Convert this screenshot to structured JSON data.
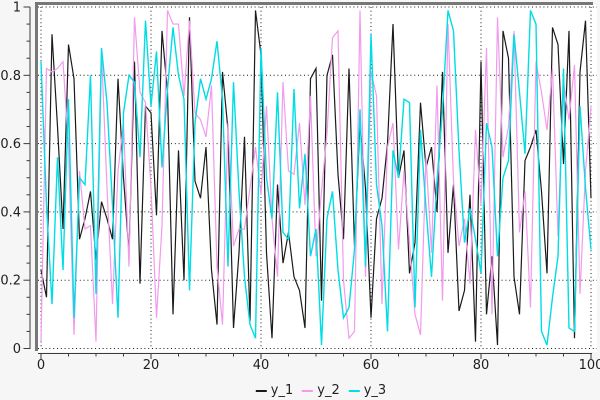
{
  "colors": {
    "background": "#f6f6f6",
    "plot_bg": "#ffffff",
    "grid": "#1b1b1b",
    "frame": "#777777",
    "axis": "#3c3c3c",
    "text": "#1f1f1f",
    "series_y1": "#1a1a1a",
    "series_y2": "#f29aed",
    "series_y3": "#00dde4"
  },
  "chart_data": {
    "type": "line",
    "title": "",
    "xlabel": "",
    "ylabel": "",
    "xlim": [
      0,
      100
    ],
    "ylim": [
      0,
      1
    ],
    "x_major_ticks": [
      0,
      20,
      40,
      60,
      80,
      100
    ],
    "x_tick_labels": [
      "0",
      "20",
      "40",
      "60",
      "80",
      "100"
    ],
    "x_minor_step": 5,
    "y_major_ticks": [
      0,
      0.2,
      0.4,
      0.6,
      0.8,
      1
    ],
    "y_tick_labels": [
      "0",
      "0.2",
      "0.4",
      "0.6",
      "0.8",
      "1"
    ],
    "y_minor_step": 0.05,
    "grid": "dotted lines at every major tick, both axes",
    "legend_position": "bottom-center",
    "x_step": 1,
    "series": [
      {
        "name": "y_1",
        "color": "#1a1a1a",
        "stroke_width": 1.2,
        "values": [
          0.23,
          0.15,
          0.92,
          0.65,
          0.35,
          0.89,
          0.79,
          0.32,
          0.38,
          0.46,
          0.26,
          0.43,
          0.38,
          0.32,
          0.79,
          0.5,
          0.28,
          0.84,
          0.19,
          0.71,
          0.69,
          0.39,
          0.93,
          0.75,
          0.1,
          0.58,
          0.2,
          0.97,
          0.49,
          0.44,
          0.59,
          0.23,
          0.07,
          0.81,
          0.64,
          0.06,
          0.28,
          0.62,
          0.08,
          0.99,
          0.86,
          0.28,
          0.03,
          0.48,
          0.25,
          0.34,
          0.21,
          0.17,
          0.06,
          0.79,
          0.82,
          0.14,
          0.8,
          0.86,
          0.51,
          0.32,
          0.82,
          0.3,
          0.66,
          0.47,
          0.09,
          0.38,
          0.44,
          0.6,
          0.95,
          0.5,
          0.58,
          0.22,
          0.31,
          0.72,
          0.53,
          0.59,
          0.4,
          0.81,
          0.28,
          0.48,
          0.11,
          0.17,
          0.45,
          0.02,
          0.84,
          0.1,
          0.27,
          0.01,
          0.93,
          0.85,
          0.21,
          0.1,
          0.55,
          0.59,
          0.64,
          0.46,
          0.22,
          0.94,
          0.89,
          0.54,
          0.93,
          0.03,
          0.81,
          0.96,
          0.44
        ]
      },
      {
        "name": "y_2",
        "color": "#f29aed",
        "stroke_width": 1.2,
        "values": [
          0.02,
          0.82,
          0.81,
          0.82,
          0.84,
          0.59,
          0.04,
          0.52,
          0.35,
          0.36,
          0.02,
          0.87,
          0.47,
          0.13,
          0.52,
          0.66,
          0.24,
          0.97,
          0.75,
          0.72,
          0.47,
          0.09,
          0.36,
          0.99,
          0.95,
          0.95,
          0.74,
          0.96,
          0.69,
          0.67,
          0.62,
          0.77,
          0.24,
          0.07,
          0.66,
          0.3,
          0.35,
          0.35,
          0.47,
          0.59,
          0.45,
          0.71,
          0.38,
          0.21,
          0.78,
          0.52,
          0.51,
          0.66,
          0.42,
          0.74,
          0.27,
          0.46,
          0.63,
          0.91,
          0.93,
          0.2,
          0.03,
          0.05,
          0.99,
          0.21,
          0.81,
          0.74,
          0.13,
          0.59,
          0.66,
          0.29,
          0.52,
          0.31,
          0.1,
          0.04,
          0.56,
          0.28,
          0.77,
          0.14,
          0.95,
          0.49,
          0.3,
          0.38,
          0.19,
          0.64,
          0.42,
          0.88,
          0.1,
          0.97,
          0.56,
          0.65,
          0.93,
          0.34,
          0.46,
          0.12,
          0.84,
          0.75,
          0.64,
          0.82,
          0.33,
          0.78,
          0.67,
          0.83,
          0.16,
          0.52,
          0.71
        ]
      },
      {
        "name": "y_3",
        "color": "#00dde4",
        "stroke_width": 1.4,
        "values": [
          0.84,
          0.42,
          0.13,
          0.56,
          0.23,
          0.73,
          0.09,
          0.5,
          0.48,
          0.8,
          0.16,
          0.88,
          0.72,
          0.42,
          0.09,
          0.69,
          0.8,
          0.78,
          0.56,
          0.96,
          0.71,
          0.87,
          0.53,
          0.76,
          0.94,
          0.8,
          0.73,
          0.17,
          0.66,
          0.79,
          0.73,
          0.79,
          0.9,
          0.73,
          0.24,
          0.78,
          0.46,
          0.21,
          0.07,
          0.03,
          0.88,
          0.5,
          0.38,
          0.75,
          0.34,
          0.32,
          0.76,
          0.41,
          0.57,
          0.27,
          0.35,
          0.01,
          0.38,
          0.46,
          0.23,
          0.09,
          0.12,
          0.29,
          0.7,
          0.24,
          0.92,
          0.48,
          0.36,
          0.05,
          0.58,
          0.5,
          0.73,
          0.72,
          0.12,
          0.64,
          0.41,
          0.21,
          0.49,
          0.7,
          0.99,
          0.93,
          0.58,
          0.31,
          0.41,
          0.32,
          0.22,
          0.66,
          0.59,
          0.27,
          0.5,
          0.55,
          0.92,
          0.75,
          0.57,
          0.99,
          0.95,
          0.05,
          0.01,
          0.15,
          0.27,
          0.82,
          0.06,
          0.05,
          0.71,
          0.47,
          0.29
        ]
      }
    ]
  },
  "legend": {
    "items": [
      {
        "label": "y_1",
        "color": "#1a1a1a"
      },
      {
        "label": "y_2",
        "color": "#f29aed"
      },
      {
        "label": "y_3",
        "color": "#00dde4"
      }
    ]
  }
}
